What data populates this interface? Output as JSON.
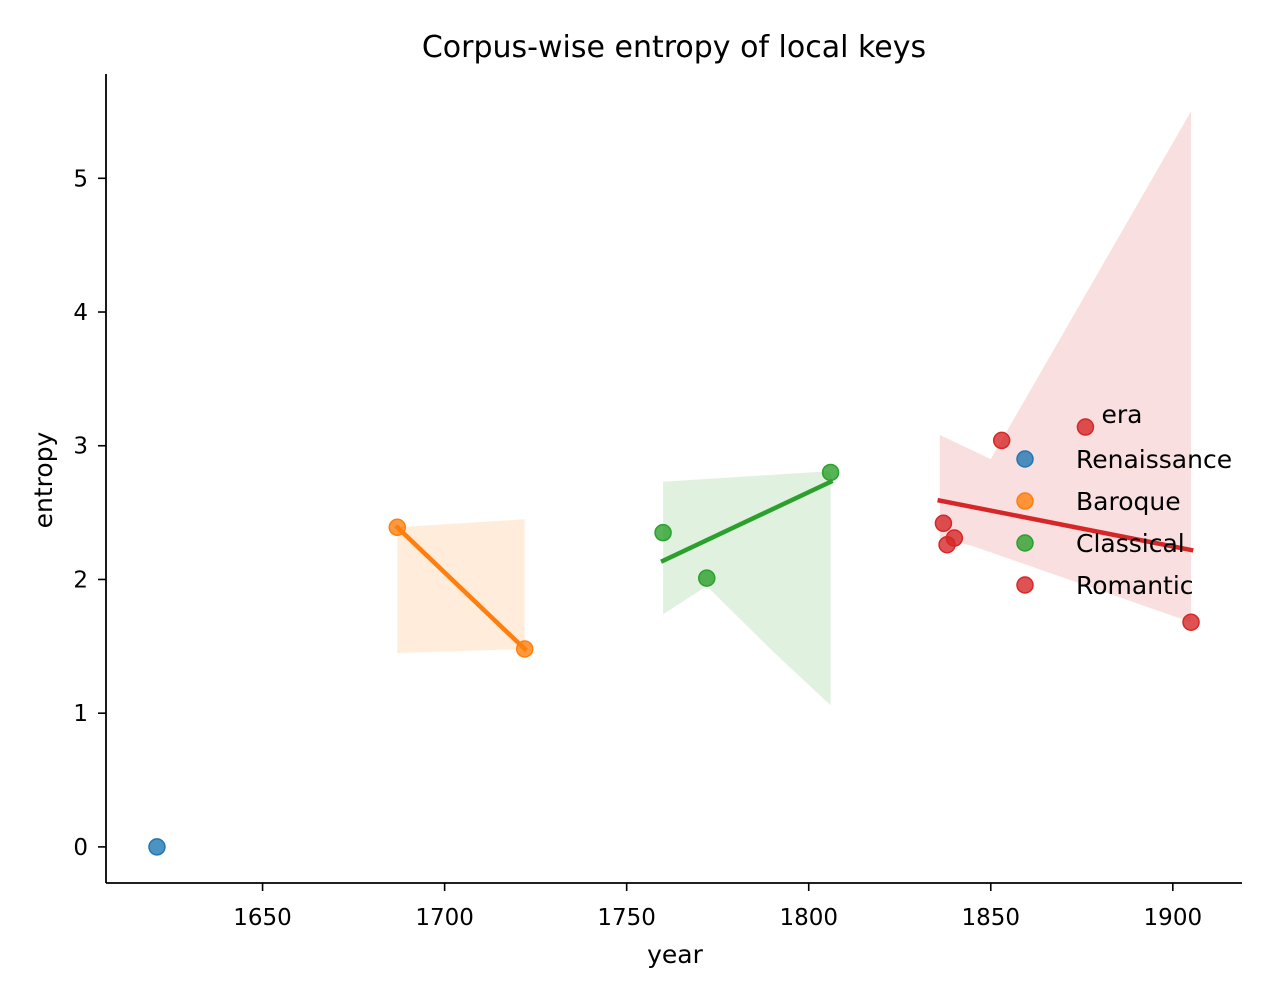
{
  "chart_data": {
    "type": "scatter",
    "title": "Corpus-wise entropy of local keys",
    "xlabel": "year",
    "ylabel": "entropy",
    "xlim": [
      1607,
      1919
    ],
    "ylim": [
      -0.27,
      5.78
    ],
    "xticks": [
      1650,
      1700,
      1750,
      1800,
      1850,
      1900
    ],
    "yticks": [
      0,
      1,
      2,
      3,
      4,
      5
    ],
    "grid": false,
    "legend": {
      "title": "era",
      "placement": "right"
    },
    "series": [
      {
        "name": "Renaissance",
        "color": "#1f77b4",
        "points": [
          [
            1621,
            0.0
          ]
        ],
        "fit": null,
        "band": null
      },
      {
        "name": "Baroque",
        "color": "#ff7f0e",
        "points": [
          [
            1687,
            2.39
          ],
          [
            1722,
            1.48
          ]
        ],
        "fit": [
          [
            1687,
            2.39
          ],
          [
            1722,
            1.48
          ]
        ],
        "band": [
          [
            1687,
            2.39
          ],
          [
            1722,
            2.45
          ],
          [
            1722,
            1.48
          ],
          [
            1687,
            1.45
          ]
        ]
      },
      {
        "name": "Classical",
        "color": "#2ca02c",
        "points": [
          [
            1760,
            2.35
          ],
          [
            1772,
            2.01
          ],
          [
            1806,
            2.8
          ]
        ],
        "fit": [
          [
            1760,
            2.14
          ],
          [
            1806,
            2.73
          ]
        ],
        "band": [
          [
            1760,
            2.73
          ],
          [
            1806,
            2.81
          ],
          [
            1806,
            1.06
          ],
          [
            1791,
            1.44
          ],
          [
            1772,
            1.95
          ],
          [
            1760,
            1.74
          ]
        ]
      },
      {
        "name": "Romantic",
        "color": "#d62728",
        "points": [
          [
            1837,
            2.42
          ],
          [
            1838,
            2.26
          ],
          [
            1840,
            2.31
          ],
          [
            1853,
            3.04
          ],
          [
            1876,
            3.14
          ],
          [
            1905,
            1.68
          ]
        ],
        "fit": [
          [
            1836,
            2.59
          ],
          [
            1905,
            2.22
          ]
        ],
        "band": [
          [
            1836,
            3.08
          ],
          [
            1850,
            2.9
          ],
          [
            1905,
            5.5
          ],
          [
            1905,
            1.68
          ],
          [
            1845,
            2.25
          ],
          [
            1836,
            2.31
          ]
        ]
      }
    ]
  }
}
